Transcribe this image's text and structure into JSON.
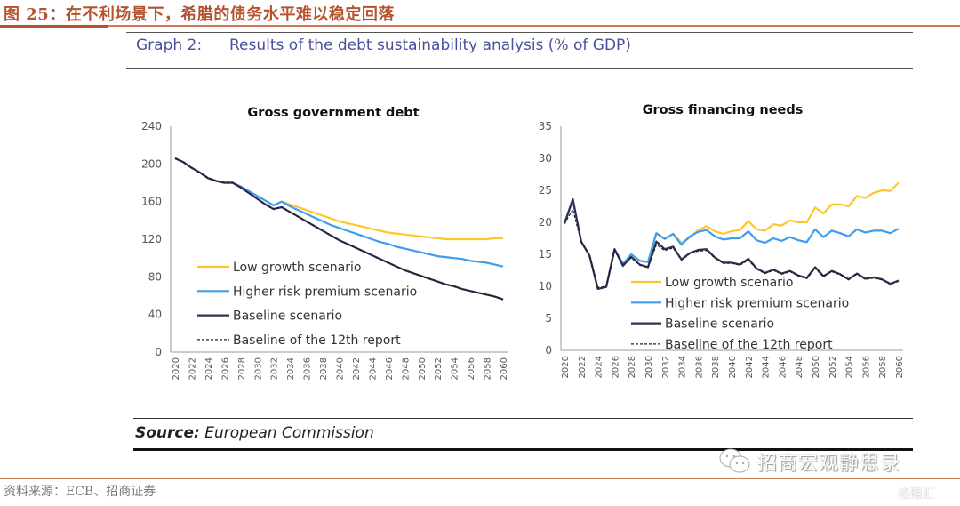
{
  "figure": {
    "title": "图 25：在不利场景下，希腊的债务水平难以稳定回落",
    "graph_label": "Graph 2:",
    "graph_title": "Results of the debt sustainability analysis (% of GDP)",
    "source_label": "Source:",
    "source_value": "European Commission",
    "footnote": "资料来源：ECB、招商证券",
    "watermark": "招商宏观静思录",
    "watermark2": "格隆汇"
  },
  "colors": {
    "low_growth": "#ffc629",
    "higher_risk": "#3d9df0",
    "baseline": "#2e3056",
    "baseline_12th": "#1e1e1e",
    "axis": "#9a9a9a",
    "tick_text": "#555555"
  },
  "chart_data": [
    {
      "type": "line",
      "title": "Gross government debt",
      "xlabel": "",
      "ylabel": "",
      "ylim": [
        0,
        240
      ],
      "yticks": [
        "0",
        "40",
        "80",
        "120",
        "160",
        "200",
        "240"
      ],
      "xlim": [
        2020,
        2060
      ],
      "xticks": [
        "2020",
        "2022",
        "2024",
        "2026",
        "2028",
        "2030",
        "2032",
        "2034",
        "2036",
        "2038",
        "2040",
        "2042",
        "2044",
        "2046",
        "2048",
        "2050",
        "2052",
        "2054",
        "2056",
        "2058",
        "2060"
      ],
      "grid": false,
      "legend": "bottom-left",
      "x_start": 2020,
      "series": [
        {
          "name": "Low growth scenario",
          "key": "low_growth",
          "dash": false,
          "values": [
            206,
            202,
            196,
            191,
            185,
            182,
            180,
            180,
            176,
            171,
            166,
            161,
            156,
            160,
            157,
            154,
            151,
            148,
            145,
            142,
            139,
            137,
            135,
            133,
            131,
            129,
            127,
            126,
            125,
            124,
            123,
            122,
            121,
            120,
            120,
            120,
            120,
            120,
            120,
            121,
            121
          ]
        },
        {
          "name": "Higher risk premium scenario",
          "key": "higher_risk",
          "dash": false,
          "values": [
            206,
            202,
            196,
            191,
            185,
            182,
            180,
            180,
            176,
            171,
            166,
            161,
            156,
            160,
            155,
            151,
            147,
            143,
            139,
            135,
            132,
            129,
            126,
            123,
            120,
            117,
            115,
            112,
            110,
            108,
            106,
            104,
            102,
            101,
            100,
            99,
            97,
            96,
            95,
            93,
            91
          ]
        },
        {
          "name": "Baseline scenario",
          "key": "baseline",
          "dash": false,
          "values": [
            206,
            202,
            196,
            191,
            185,
            182,
            180,
            180,
            175,
            169,
            163,
            157,
            152,
            154,
            149,
            144,
            139,
            134,
            129,
            124,
            119,
            115,
            111,
            107,
            103,
            99,
            95,
            91,
            87,
            84,
            81,
            78,
            75,
            72,
            70,
            67,
            65,
            63,
            61,
            59,
            56
          ]
        },
        {
          "name": "Baseline of the 12th report",
          "key": "baseline_12th",
          "dash": true,
          "values": [
            206,
            202,
            196,
            191,
            185,
            182,
            180,
            180,
            175,
            169,
            163,
            157,
            152,
            154,
            149,
            144,
            139,
            134,
            129,
            124,
            119,
            115,
            111,
            107,
            103,
            99,
            95,
            91,
            87,
            84,
            81,
            78,
            75,
            72,
            70,
            67,
            65,
            63,
            61,
            59,
            56
          ]
        }
      ]
    },
    {
      "type": "line",
      "title": "Gross financing needs",
      "xlabel": "",
      "ylabel": "",
      "ylim": [
        0,
        35
      ],
      "yticks": [
        "0",
        "5",
        "10",
        "15",
        "20",
        "25",
        "30",
        "35"
      ],
      "xlim": [
        2020,
        2060
      ],
      "xticks": [
        "2020",
        "2022",
        "2024",
        "2026",
        "2028",
        "2030",
        "2032",
        "2034",
        "2036",
        "2038",
        "2040",
        "2042",
        "2044",
        "2046",
        "2048",
        "2050",
        "2052",
        "2054",
        "2056",
        "2058",
        "2060"
      ],
      "grid": false,
      "legend": "bottom-center",
      "x_start": 2020,
      "series": [
        {
          "name": "Low growth scenario",
          "key": "low_growth",
          "dash": false,
          "values": [
            19.8,
            23.6,
            17.0,
            14.8,
            9.6,
            9.9,
            15.8,
            13.5,
            15.0,
            14.0,
            13.8,
            18.3,
            17.4,
            18.2,
            16.8,
            17.6,
            18.8,
            19.4,
            18.6,
            18.2,
            18.6,
            18.8,
            20.2,
            18.9,
            18.7,
            19.7,
            19.5,
            20.3,
            20.0,
            20.0,
            22.3,
            21.4,
            22.8,
            22.8,
            22.5,
            24.1,
            23.8,
            24.6,
            25.0,
            24.9,
            26.2
          ]
        },
        {
          "name": "Higher risk premium scenario",
          "key": "higher_risk",
          "dash": false,
          "values": [
            19.8,
            23.6,
            17.0,
            14.8,
            9.6,
            9.9,
            15.8,
            13.5,
            15.0,
            14.0,
            13.8,
            18.3,
            17.4,
            18.2,
            16.5,
            17.8,
            18.5,
            18.8,
            17.8,
            17.3,
            17.5,
            17.5,
            18.6,
            17.2,
            16.8,
            17.5,
            17.1,
            17.7,
            17.2,
            16.9,
            18.9,
            17.7,
            18.7,
            18.3,
            17.8,
            18.9,
            18.4,
            18.7,
            18.7,
            18.3,
            19.0
          ]
        },
        {
          "name": "Baseline scenario",
          "key": "baseline",
          "dash": false,
          "values": [
            19.8,
            23.6,
            17.0,
            14.8,
            9.6,
            9.9,
            15.8,
            13.2,
            14.6,
            13.4,
            13.0,
            17.0,
            15.8,
            16.2,
            14.2,
            15.2,
            15.7,
            15.8,
            14.5,
            13.7,
            13.7,
            13.4,
            14.3,
            12.8,
            12.1,
            12.6,
            12.0,
            12.4,
            11.7,
            11.3,
            13.0,
            11.6,
            12.4,
            11.9,
            11.1,
            12.0,
            11.2,
            11.4,
            11.1,
            10.4,
            10.9
          ]
        },
        {
          "name": "Baseline of the 12th report",
          "key": "baseline_12th",
          "dash": true,
          "values": [
            19.8,
            22.0,
            17.0,
            14.8,
            9.8,
            10.0,
            15.6,
            13.4,
            14.5,
            13.3,
            12.9,
            16.5,
            15.6,
            16.0,
            14.1,
            15.1,
            15.5,
            15.6,
            14.4,
            13.6,
            13.6,
            13.3,
            14.1,
            12.7,
            12.0,
            12.5,
            11.9,
            12.3,
            11.6,
            11.2,
            12.8,
            11.5,
            12.3,
            11.8,
            11.0,
            11.9,
            11.1,
            11.3,
            11.0,
            10.3,
            10.8
          ]
        }
      ]
    }
  ]
}
